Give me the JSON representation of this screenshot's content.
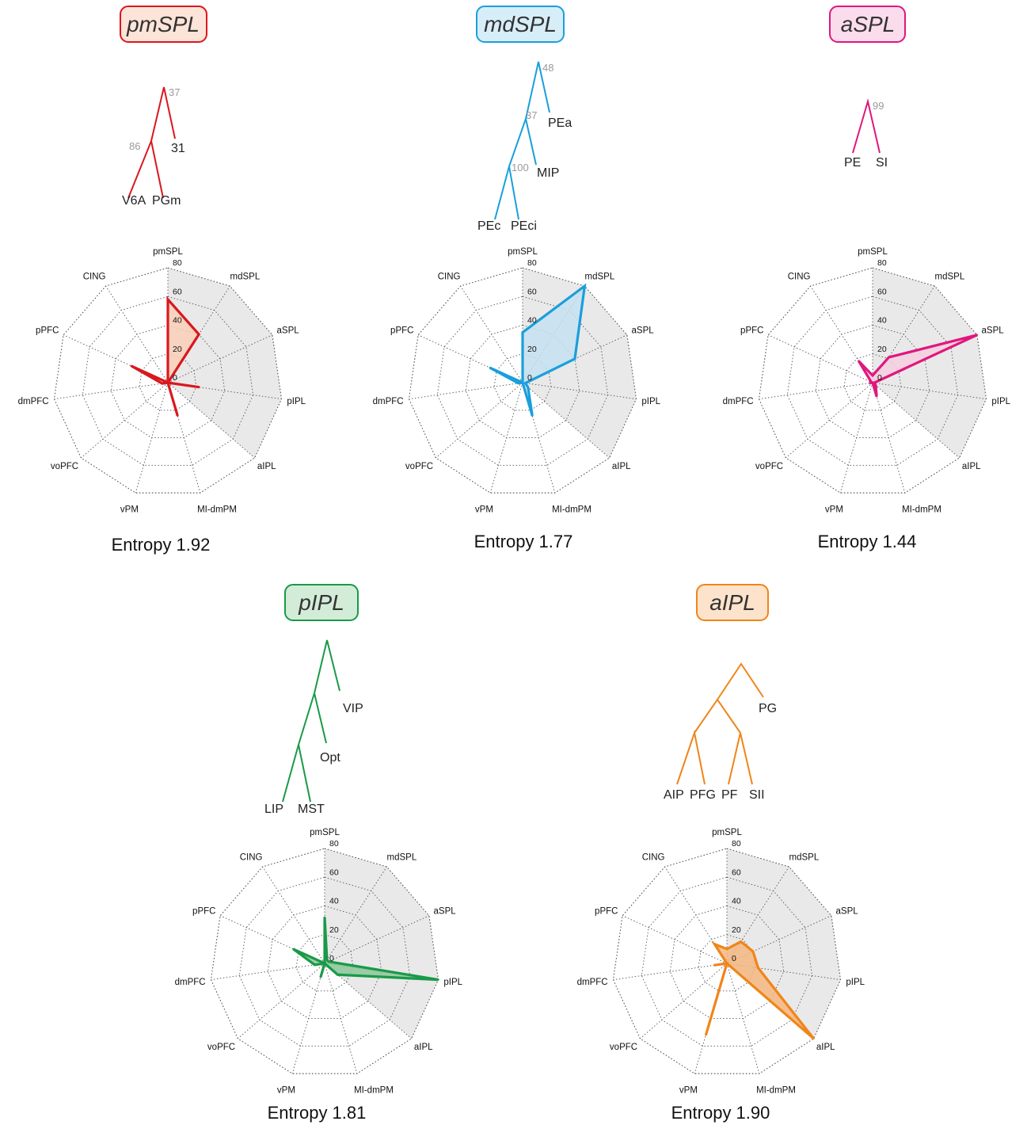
{
  "figure": {
    "radar_axes": [
      "pmSPL",
      "mdSPL",
      "aSPL",
      "pIPL",
      "aIPL",
      "MI-dmPM",
      "vPM",
      "voPFC",
      "dmPFC",
      "pPFC",
      "CING"
    ],
    "radar_ticks": [
      "0",
      "20",
      "40",
      "60",
      "80"
    ],
    "reference_fill": "#e9e9e9",
    "grid_color": "#555555"
  },
  "panels": [
    {
      "title": "pmSPL",
      "color": "#d9181f",
      "fill": "#f9cfb9",
      "box_fill": "#fde4d8",
      "entropy": "Entropy 1.92",
      "tree": {
        "labels": [
          "V6A",
          "PGm",
          "31"
        ],
        "supports": [
          "37",
          "86"
        ]
      }
    },
    {
      "title": "mdSPL",
      "color": "#1a9fdb",
      "fill": "#c6e2f1",
      "box_fill": "#d7eef9",
      "entropy": "Entropy 1.77",
      "tree": {
        "labels": [
          "PEc",
          "PEci",
          "MIP",
          "PEa"
        ],
        "supports": [
          "48",
          "37",
          "100"
        ]
      }
    },
    {
      "title": "aSPL",
      "color": "#e0177d",
      "fill": "#f4cfe0",
      "box_fill": "#fbdcec",
      "entropy": "Entropy 1.44",
      "tree": {
        "labels": [
          "PE",
          "SI"
        ],
        "supports": [
          "99"
        ]
      }
    },
    {
      "title": "pIPL",
      "color": "#199a48",
      "fill": "#8cc79a",
      "box_fill": "#d3ecd8",
      "entropy": "Entropy 1.81",
      "tree": {
        "labels": [
          "LIP",
          "MST",
          "Opt",
          "VIP"
        ],
        "supports": []
      }
    },
    {
      "title": "aIPL",
      "color": "#f08519",
      "fill": "#f4b781",
      "box_fill": "#fde3cc",
      "entropy": "Entropy 1.90",
      "tree": {
        "labels": [
          "AIP",
          "PFG",
          "PF",
          "SII",
          "PG"
        ],
        "supports": []
      }
    }
  ],
  "chart_data": {
    "type": "radar",
    "axes": [
      "pmSPL",
      "mdSPL",
      "aSPL",
      "pIPL",
      "aIPL",
      "MI-dmPM",
      "vPM",
      "voPFC",
      "dmPFC",
      "pPFC",
      "CING"
    ],
    "range": [
      0,
      80
    ],
    "ticks": [
      0,
      20,
      40,
      60,
      80
    ],
    "reference_area": [
      "pmSPL",
      "mdSPL",
      "aSPL",
      "pIPL",
      "aIPL"
    ],
    "charts": [
      {
        "title": "pmSPL",
        "entropy": 1.92,
        "values": [
          58,
          40,
          0,
          22,
          0,
          24,
          0,
          0,
          4,
          28,
          0
        ]
      },
      {
        "title": "mdSPL",
        "entropy": 1.77,
        "values": [
          35,
          80,
          40,
          2,
          5,
          24,
          0,
          0,
          3,
          25,
          0
        ]
      },
      {
        "title": "aSPL",
        "entropy": 1.44,
        "values": [
          5,
          21,
          80,
          1,
          3,
          10,
          0,
          0,
          2,
          1,
          18
        ]
      },
      {
        "title": "pIPL",
        "entropy": 1.81,
        "values": [
          32,
          3,
          3,
          80,
          12,
          0,
          10,
          0,
          7,
          24,
          0
        ]
      },
      {
        "title": "aIPL",
        "entropy": 1.9,
        "values": [
          10,
          18,
          20,
          22,
          80,
          0,
          52,
          0,
          9,
          0,
          16
        ]
      }
    ]
  }
}
